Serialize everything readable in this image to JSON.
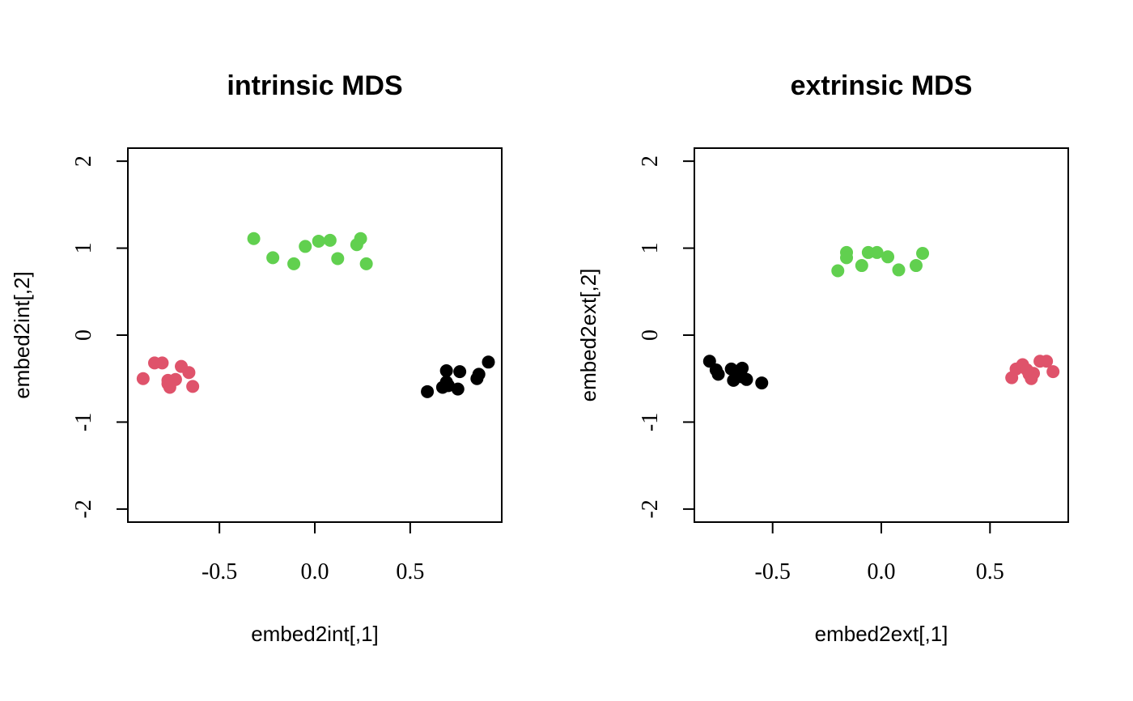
{
  "chart_data": [
    {
      "type": "scatter",
      "title": "intrinsic MDS",
      "xlabel": "embed2int[,1]",
      "ylabel": "embed2int[,2]",
      "xlim": [
        -0.98,
        0.98
      ],
      "ylim": [
        -2.15,
        2.15
      ],
      "x_ticks": [
        -0.5,
        0.0,
        0.5
      ],
      "x_tick_labels": [
        "-0.5",
        "0.0",
        "0.5"
      ],
      "y_ticks": [
        -2,
        -1,
        0,
        1,
        2
      ],
      "y_tick_labels": [
        "-2",
        "-1",
        "0",
        "1",
        "2"
      ],
      "grid": false,
      "legend": "none",
      "series": [
        {
          "color": "#000000",
          "points": [
            [
              0.59,
              -0.65
            ],
            [
              0.67,
              -0.6
            ],
            [
              0.69,
              -0.54
            ],
            [
              0.69,
              -0.41
            ],
            [
              0.75,
              -0.62
            ],
            [
              0.76,
              -0.42
            ],
            [
              0.85,
              -0.5
            ],
            [
              0.86,
              -0.45
            ],
            [
              0.91,
              -0.31
            ],
            [
              0.7,
              -0.58
            ]
          ]
        },
        {
          "color": "#DF536B",
          "points": [
            [
              -0.9,
              -0.5
            ],
            [
              -0.84,
              -0.32
            ],
            [
              -0.8,
              -0.32
            ],
            [
              -0.77,
              -0.52
            ],
            [
              -0.76,
              -0.6
            ],
            [
              -0.73,
              -0.51
            ],
            [
              -0.7,
              -0.36
            ],
            [
              -0.66,
              -0.43
            ],
            [
              -0.64,
              -0.59
            ],
            [
              -0.77,
              -0.56
            ]
          ]
        },
        {
          "color": "#61D04F",
          "points": [
            [
              -0.32,
              1.11
            ],
            [
              -0.22,
              0.89
            ],
            [
              -0.11,
              0.82
            ],
            [
              -0.05,
              1.02
            ],
            [
              0.02,
              1.08
            ],
            [
              0.08,
              1.09
            ],
            [
              0.12,
              0.88
            ],
            [
              0.22,
              1.04
            ],
            [
              0.24,
              1.11
            ],
            [
              0.27,
              0.82
            ]
          ]
        }
      ]
    },
    {
      "type": "scatter",
      "title": "extrinsic MDS",
      "xlabel": "embed2ext[,1]",
      "ylabel": "embed2ext[,2]",
      "xlim": [
        -0.86,
        0.86
      ],
      "ylim": [
        -2.15,
        2.15
      ],
      "x_ticks": [
        -0.5,
        0.0,
        0.5
      ],
      "x_tick_labels": [
        "-0.5",
        "0.0",
        "0.5"
      ],
      "y_ticks": [
        -2,
        -1,
        0,
        1,
        2
      ],
      "y_tick_labels": [
        "-2",
        "-1",
        "0",
        "1",
        "2"
      ],
      "grid": false,
      "legend": "none",
      "series": [
        {
          "color": "#000000",
          "points": [
            [
              -0.79,
              -0.3
            ],
            [
              -0.76,
              -0.4
            ],
            [
              -0.75,
              -0.45
            ],
            [
              -0.69,
              -0.39
            ],
            [
              -0.68,
              -0.52
            ],
            [
              -0.64,
              -0.48
            ],
            [
              -0.64,
              -0.38
            ],
            [
              -0.62,
              -0.51
            ],
            [
              -0.55,
              -0.55
            ],
            [
              -0.66,
              -0.44
            ]
          ]
        },
        {
          "color": "#DF536B",
          "points": [
            [
              0.6,
              -0.49
            ],
            [
              0.62,
              -0.39
            ],
            [
              0.65,
              -0.34
            ],
            [
              0.68,
              -0.45
            ],
            [
              0.69,
              -0.5
            ],
            [
              0.7,
              -0.44
            ],
            [
              0.73,
              -0.3
            ],
            [
              0.76,
              -0.3
            ],
            [
              0.79,
              -0.42
            ],
            [
              0.67,
              -0.4
            ]
          ]
        },
        {
          "color": "#61D04F",
          "points": [
            [
              -0.2,
              0.74
            ],
            [
              -0.16,
              0.95
            ],
            [
              -0.16,
              0.89
            ],
            [
              -0.09,
              0.8
            ],
            [
              -0.06,
              0.95
            ],
            [
              -0.02,
              0.95
            ],
            [
              0.03,
              0.9
            ],
            [
              0.08,
              0.75
            ],
            [
              0.16,
              0.8
            ],
            [
              0.19,
              0.94
            ]
          ]
        }
      ]
    }
  ]
}
